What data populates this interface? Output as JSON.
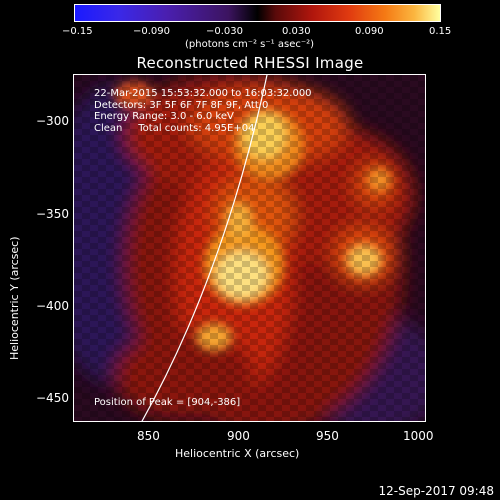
{
  "colorbar": {
    "ticks": [
      "−0.15",
      "−0.090",
      "−0.030",
      "0.030",
      "0.090",
      "0.15"
    ],
    "units": "(photons cm⁻² s⁻¹ asec⁻²)"
  },
  "title": "Reconstructed RHESSI Image",
  "info": {
    "line1": "22-Mar-2015 15:53:32.000 to 16:03:32.000",
    "line2": "Detectors: 3F 5F 6F 7F 8F 9F, Att 0",
    "line3": "Energy Range: 3.0 - 6.0 keV",
    "line4": "Clean     Total counts: 4.95E+04"
  },
  "peak": "Position of Peak = [904,-386]",
  "axes": {
    "xlabel": "Heliocentric X (arcsec)",
    "ylabel": "Heliocentric Y (arcsec)",
    "xticks": [
      "850",
      "900",
      "950",
      "1000"
    ],
    "yticks": [
      "−300",
      "−350",
      "−400",
      "−450"
    ]
  },
  "timestamp": "12-Sep-2017 09:48"
}
